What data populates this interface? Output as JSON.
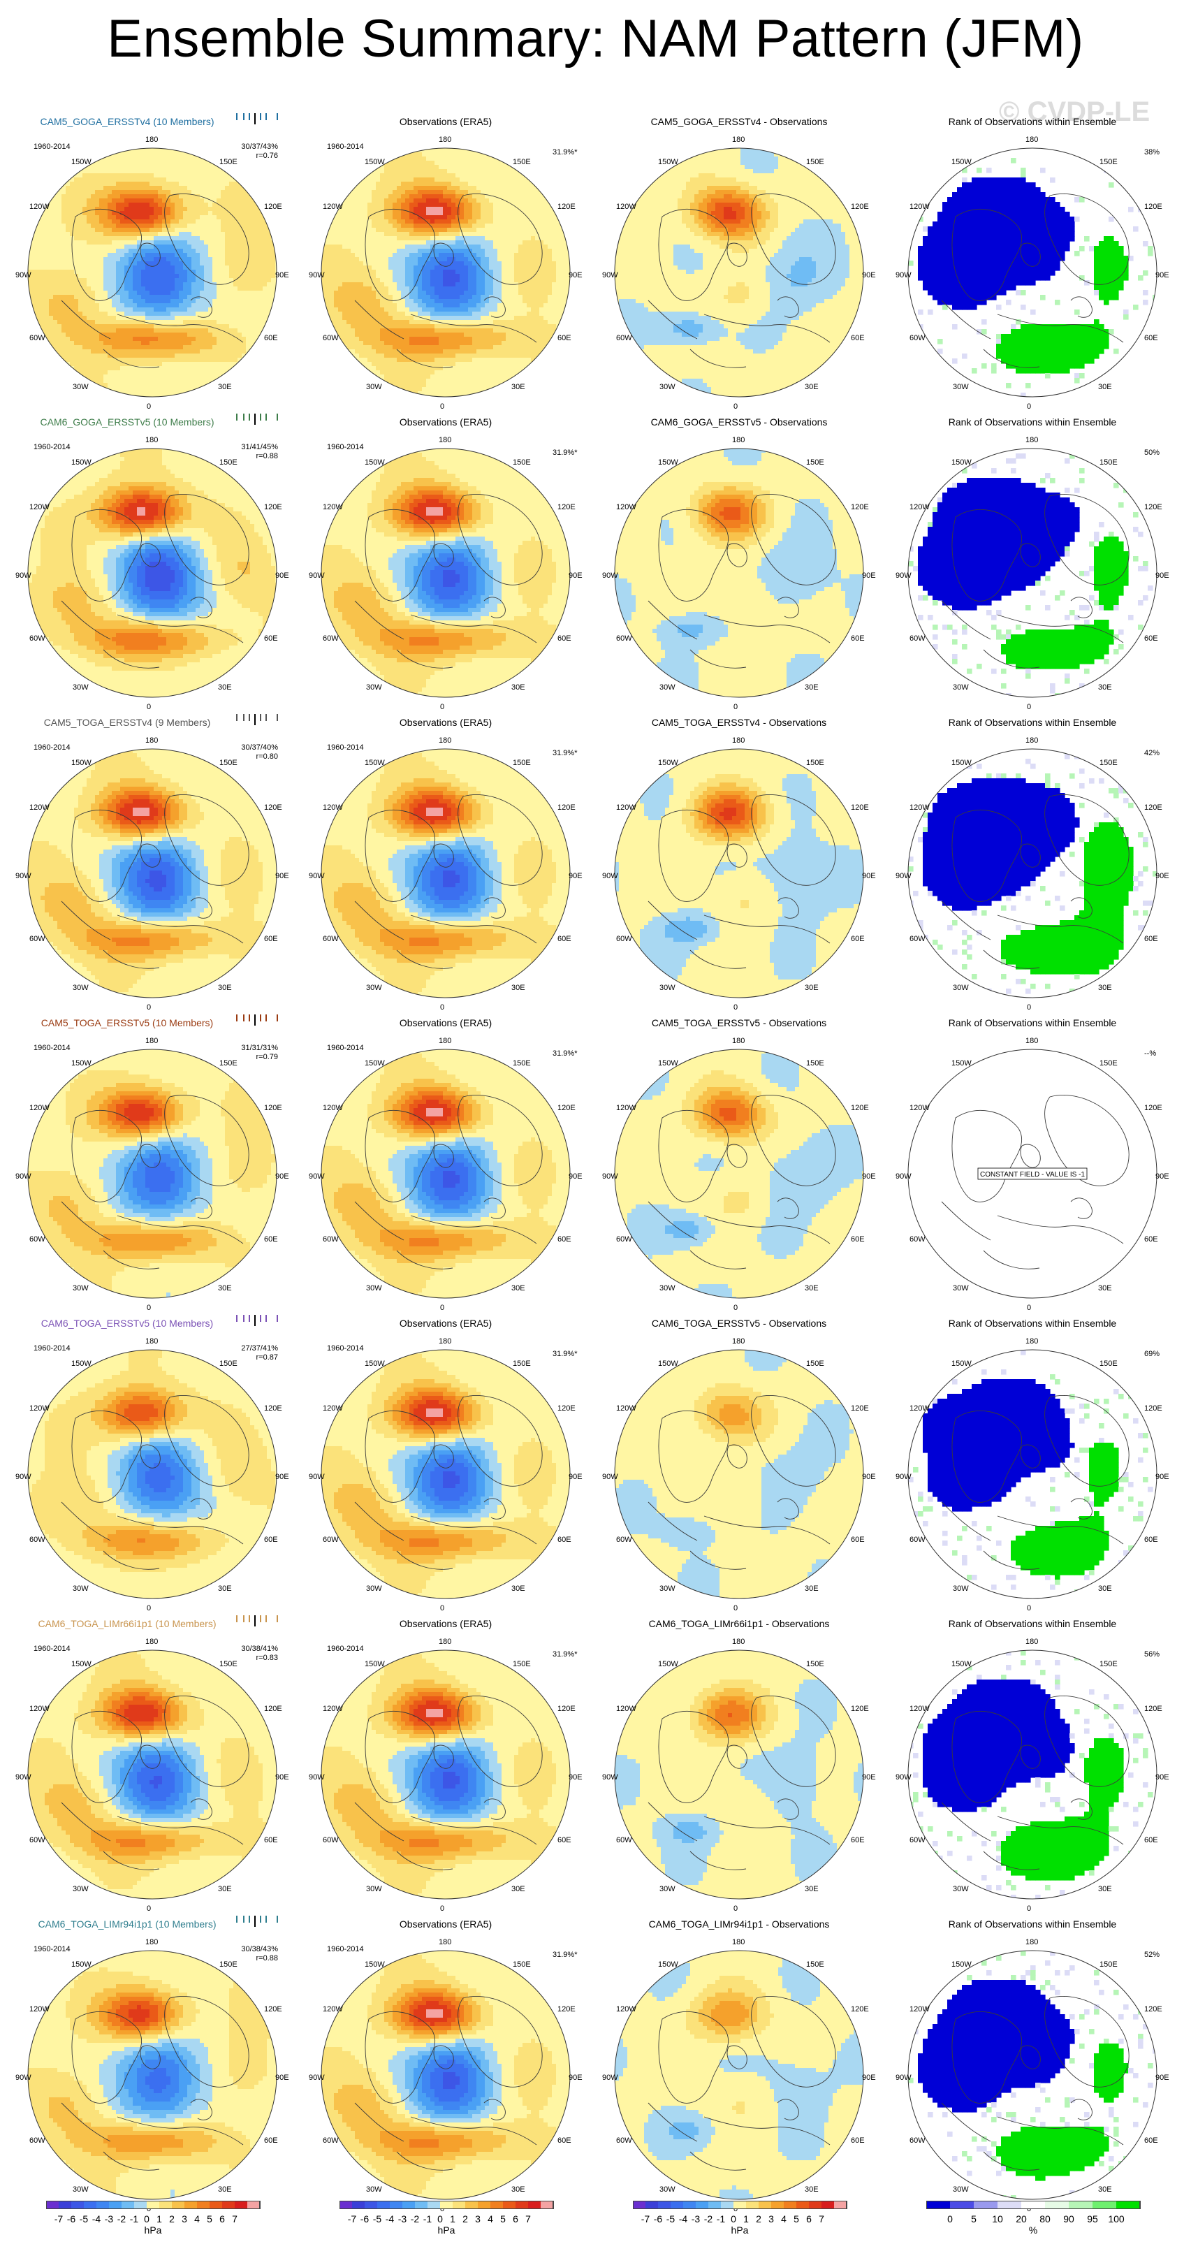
{
  "title": "Ensemble Summary: NAM Pattern (JFM)",
  "watermark": "© CVDP-LE",
  "period": "1960-2014",
  "obs_title": "Observations (ERA5)",
  "obs_pct": "31.9%*",
  "rank_title": "Rank of Observations within Ensemble",
  "lon_labels": {
    "top": "180",
    "tl": "150W",
    "tr": "150E",
    "ul": "120W",
    "ur": "120E",
    "l": "90W",
    "r": "90E",
    "ll": "60W",
    "lr": "60E",
    "bl": "30W",
    "br": "30E",
    "bottom": "0"
  },
  "colors": {
    "title_ref": "#000000"
  },
  "rows": [
    {
      "model": "CAM5_GOGA_ERSSTv4",
      "members": "(10 Members)",
      "model_color": "#1f6fa0",
      "stats": "30/37/43%",
      "corr": "r=0.76",
      "diff_title": "CAM5_GOGA_ERSSTv4 - Observations",
      "rank_pct": "38%",
      "seed": 1,
      "rank_mode": "map"
    },
    {
      "model": "CAM6_GOGA_ERSSTv5",
      "members": "(10 Members)",
      "model_color": "#3e7d4a",
      "stats": "31/41/45%",
      "corr": "r=0.88",
      "diff_title": "CAM6_GOGA_ERSSTv5 - Observations",
      "rank_pct": "50%",
      "seed": 2,
      "rank_mode": "map"
    },
    {
      "model": "CAM5_TOGA_ERSSTv4",
      "members": "(9 Members)",
      "model_color": "#555555",
      "stats": "30/37/40%",
      "corr": "r=0.80",
      "diff_title": "CAM5_TOGA_ERSSTv4 - Observations",
      "rank_pct": "42%",
      "seed": 3,
      "rank_mode": "map"
    },
    {
      "model": "CAM5_TOGA_ERSSTv5",
      "members": "(10 Members)",
      "model_color": "#9a3b12",
      "stats": "31/31/31%",
      "corr": "r=0.79",
      "diff_title": "CAM5_TOGA_ERSSTv5 - Observations",
      "rank_pct": "--%",
      "seed": 4,
      "rank_mode": "constant",
      "constant_label": "CONSTANT FIELD - VALUE IS -1"
    },
    {
      "model": "CAM6_TOGA_ERSSTv5",
      "members": "(10 Members)",
      "model_color": "#7b52b5",
      "stats": "27/37/41%",
      "corr": "r=0.87",
      "diff_title": "CAM6_TOGA_ERSSTv5 - Observations",
      "rank_pct": "69%",
      "seed": 5,
      "rank_mode": "map"
    },
    {
      "model": "CAM6_TOGA_LIMr66i1p1",
      "members": "(10 Members)",
      "model_color": "#c8944e",
      "stats": "30/38/41%",
      "corr": "r=0.83",
      "diff_title": "CAM6_TOGA_LIMr66i1p1 - Observations",
      "rank_pct": "56%",
      "seed": 6,
      "rank_mode": "map"
    },
    {
      "model": "CAM6_TOGA_LIMr94i1p1",
      "members": "(10 Members)",
      "model_color": "#2f7e8e",
      "stats": "30/38/43%",
      "corr": "r=0.88",
      "diff_title": "CAM6_TOGA_LIMr94i1p1 - Observations",
      "rank_pct": "52%",
      "seed": 7,
      "rank_mode": "map"
    }
  ],
  "chart_data": {
    "type": "heatmap",
    "title": "Ensemble Summary: NAM Pattern (JFM)",
    "projection": "polar stereographic, Northern Hemisphere",
    "period": "1960-2014",
    "hpa_colorbar": {
      "unit": "hPa",
      "levels": [
        -7,
        -6,
        -5,
        -4,
        -3,
        -2,
        -1,
        0,
        1,
        2,
        3,
        4,
        5,
        6,
        7
      ],
      "labels": [
        "-7",
        "-6",
        "-5",
        "-4",
        "-3",
        "-2",
        "-1",
        "0",
        "1",
        "2",
        "3",
        "4",
        "5",
        "6",
        "7"
      ],
      "colors": [
        "#6a2fd0",
        "#3b3fd8",
        "#3d56e6",
        "#3b6ff0",
        "#3f86f2",
        "#4aa0f4",
        "#6fbcf4",
        "#a9d8f2",
        "#fff6a3",
        "#fbe27a",
        "#f8c24b",
        "#f5a12c",
        "#f17f1f",
        "#ea5a18",
        "#e03a1a",
        "#d81d1d",
        "#f4a3a3"
      ]
    },
    "rank_colorbar": {
      "unit": "%",
      "labels": [
        "0",
        "5",
        "10",
        "20",
        "80",
        "90",
        "95",
        "100"
      ],
      "colors": [
        "#0000d6",
        "#4b4be6",
        "#9999ee",
        "#dcdcf6",
        "#ffffff",
        "#e6fbe6",
        "#b6f5b6",
        "#6ef06e",
        "#00e000"
      ]
    },
    "panels_per_row": [
      "model ensemble mean pattern",
      "Observations (ERA5)",
      "model - Observations",
      "Rank of Observations within Ensemble"
    ],
    "model_pattern_strength": [
      1.0,
      1.05,
      1.0,
      0.95,
      0.85,
      0.95,
      0.9
    ],
    "difference_strength": [
      1.0,
      0.8,
      0.95,
      0.85,
      0.55,
      0.75,
      0.6
    ]
  }
}
